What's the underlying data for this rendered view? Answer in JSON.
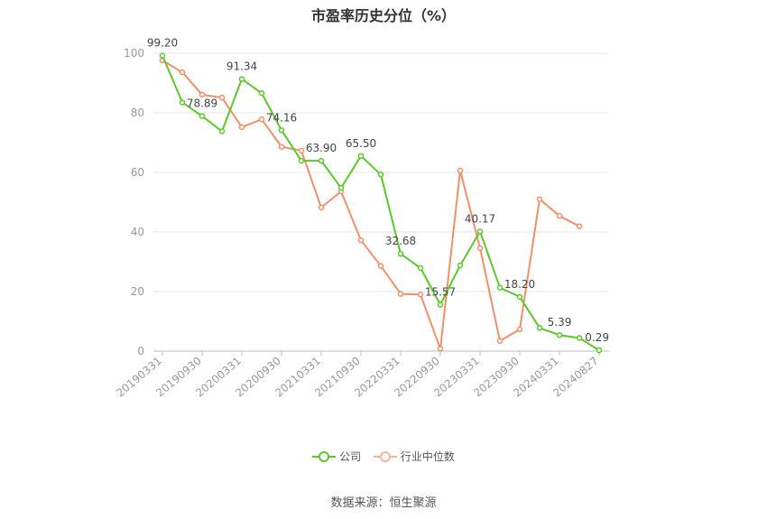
{
  "chart_data": {
    "type": "line",
    "title": "市盈率历史分位（%）",
    "xlabel": "",
    "ylabel": "",
    "ylim": [
      0,
      100
    ],
    "yticks": [
      0,
      20,
      40,
      60,
      80,
      100
    ],
    "grid": true,
    "legend_position": "bottom",
    "x_labels": [
      "20190331",
      "20190930",
      "20200331",
      "20200930",
      "20210331",
      "20210930",
      "20220331",
      "20220930",
      "20230331",
      "20230930",
      "20240331",
      "20240827"
    ],
    "series": [
      {
        "name": "公司",
        "color": "#5cc72c",
        "values": [
          99.2,
          83.5,
          78.89,
          73.8,
          91.34,
          86.6,
          74.16,
          63.9,
          63.9,
          54.8,
          65.5,
          59.3,
          32.68,
          27.9,
          15.57,
          28.8,
          40.17,
          21.3,
          18.2,
          7.8,
          5.39,
          4.4,
          0.29
        ],
        "labeled": {
          "0": "99.20",
          "2": "78.89",
          "4": "91.34",
          "6": "74.16",
          "8": "63.90",
          "10": "65.50",
          "12": "32.68",
          "14": "15.57",
          "16": "40.17",
          "18": "18.20",
          "20": "5.39",
          "22": "0.29"
        }
      },
      {
        "name": "行业中位数",
        "color": "#f0906a",
        "values": [
          97.6,
          93.6,
          86.1,
          85.1,
          75.2,
          77.8,
          68.6,
          67.3,
          48.2,
          53.6,
          37.2,
          28.6,
          19.2,
          19.0,
          0.8,
          60.6,
          34.6,
          3.4,
          7.3,
          51.0,
          45.4,
          41.9,
          null
        ]
      }
    ]
  },
  "legend": {
    "company": "公司",
    "industry": "行业中位数"
  },
  "footer": {
    "source": "数据来源：恒生聚源"
  }
}
